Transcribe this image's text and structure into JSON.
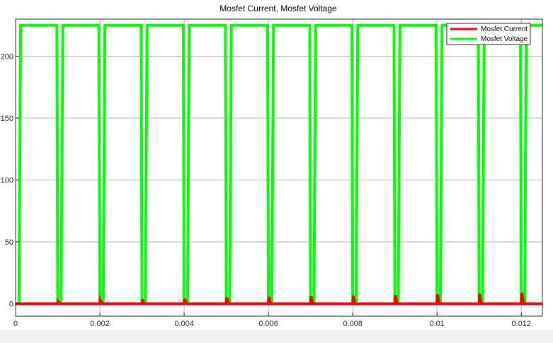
{
  "chart_data": {
    "type": "line",
    "title": "Mosfet Current, Mosfet Voltage",
    "xlabel": "",
    "ylabel": "",
    "xlim": [
      0,
      0.0125
    ],
    "ylim": [
      -10,
      230
    ],
    "x_ticks": [
      0,
      0.002,
      0.004,
      0.006,
      0.008,
      0.01,
      0.012
    ],
    "x_tick_labels": [
      "0",
      "0.002",
      "0.004",
      "0.006",
      "0.008",
      "0.01",
      "0.012"
    ],
    "y_ticks": [
      0,
      50,
      100,
      150,
      200
    ],
    "y_tick_labels": [
      "0",
      "50",
      "100",
      "150",
      "200"
    ],
    "grid": true,
    "legend_position": "top-right",
    "series": [
      {
        "name": "Mosfet Current",
        "color": "#ff0000",
        "x": [
          0,
          5e-05,
          0.001,
          0.00101,
          0.00105,
          0.002,
          0.00201,
          0.00205,
          0.003,
          0.00301,
          0.00305,
          0.004,
          0.00401,
          0.00405,
          0.005,
          0.00501,
          0.00505,
          0.006,
          0.00601,
          0.00605,
          0.007,
          0.00701,
          0.00705,
          0.008,
          0.00801,
          0.00805,
          0.009,
          0.00901,
          0.00905,
          0.01,
          0.01001,
          0.01005,
          0.011,
          0.01101,
          0.01105,
          0.012,
          0.01201,
          0.01205,
          0.0125
        ],
        "y": [
          0,
          0,
          0,
          2,
          0,
          0,
          3,
          0,
          0,
          3.5,
          0,
          0,
          4,
          0,
          0,
          5,
          0,
          0,
          5.5,
          0,
          0,
          6,
          0,
          0,
          6.5,
          0,
          0,
          7,
          0,
          0,
          7.5,
          0,
          0,
          8,
          0,
          0,
          9,
          0,
          0
        ]
      },
      {
        "name": "Mosfet Voltage",
        "color": "#00ff00",
        "x": [
          0,
          8e-05,
          0.00012,
          0.00098,
          0.001,
          0.00108,
          0.00112,
          0.00198,
          0.002,
          0.00208,
          0.00212,
          0.00298,
          0.003,
          0.00308,
          0.00312,
          0.00398,
          0.004,
          0.00408,
          0.00412,
          0.00498,
          0.005,
          0.00508,
          0.00512,
          0.00598,
          0.006,
          0.00608,
          0.00612,
          0.00698,
          0.007,
          0.00708,
          0.00712,
          0.00798,
          0.008,
          0.00808,
          0.00812,
          0.00898,
          0.009,
          0.00908,
          0.00912,
          0.00998,
          0.01,
          0.01008,
          0.01012,
          0.01098,
          0.011,
          0.01108,
          0.01112,
          0.01198,
          0.012,
          0.01208,
          0.01212,
          0.0125
        ],
        "y": [
          0,
          0,
          225,
          225,
          0,
          0,
          225,
          225,
          0,
          0,
          225,
          225,
          0,
          0,
          225,
          225,
          0,
          0,
          225,
          225,
          0,
          0,
          225,
          225,
          0,
          0,
          225,
          225,
          0,
          0,
          225,
          225,
          0,
          0,
          225,
          225,
          0,
          0,
          225,
          225,
          0,
          0,
          225,
          225,
          0,
          0,
          225,
          225,
          0,
          0,
          225,
          225
        ]
      }
    ]
  }
}
